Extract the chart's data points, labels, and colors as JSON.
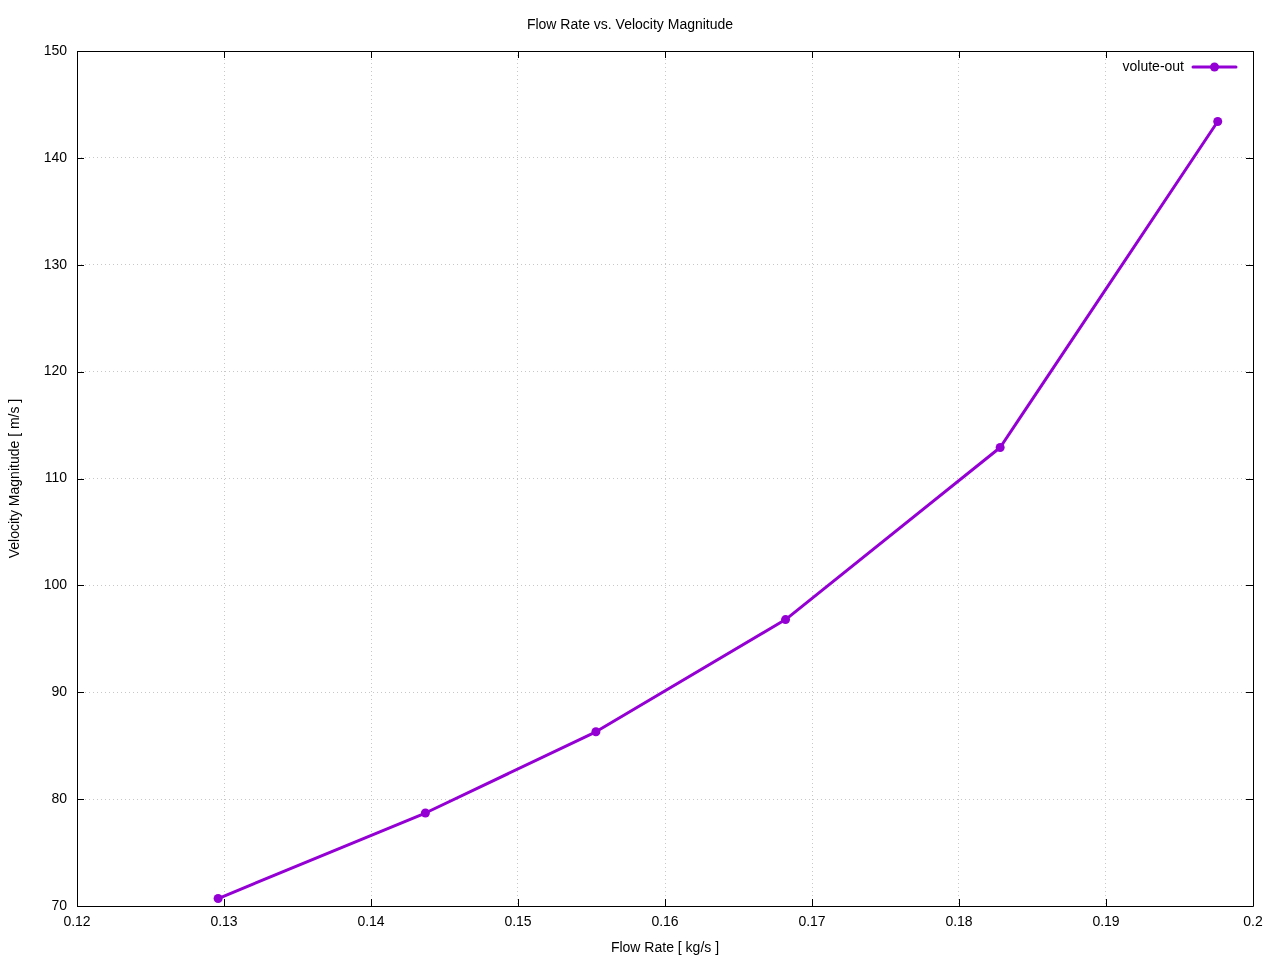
{
  "chart_data": {
    "type": "line",
    "title": "Flow Rate vs. Velocity Magnitude",
    "xlabel": "Flow Rate [ kg/s ]",
    "ylabel": "Velocity Magnitude [ m/s ]",
    "x": [
      0.1296,
      0.1437,
      0.1553,
      0.1682,
      0.1828,
      0.1976
    ],
    "series": [
      {
        "name": "volute-out",
        "color": "#9400d3",
        "values": [
          70.7,
          78.7,
          86.3,
          96.8,
          112.9,
          143.4
        ]
      }
    ],
    "xlim": [
      0.12,
      0.2
    ],
    "xticks": [
      0.12,
      0.13,
      0.14,
      0.15,
      0.16,
      0.17,
      0.18,
      0.19,
      0.2
    ],
    "ylim": [
      70,
      150
    ],
    "yticks": [
      70,
      80,
      90,
      100,
      110,
      120,
      130,
      140,
      150
    ],
    "grid": true,
    "legend": "top right",
    "marker": "circle",
    "line_style": "solid"
  }
}
